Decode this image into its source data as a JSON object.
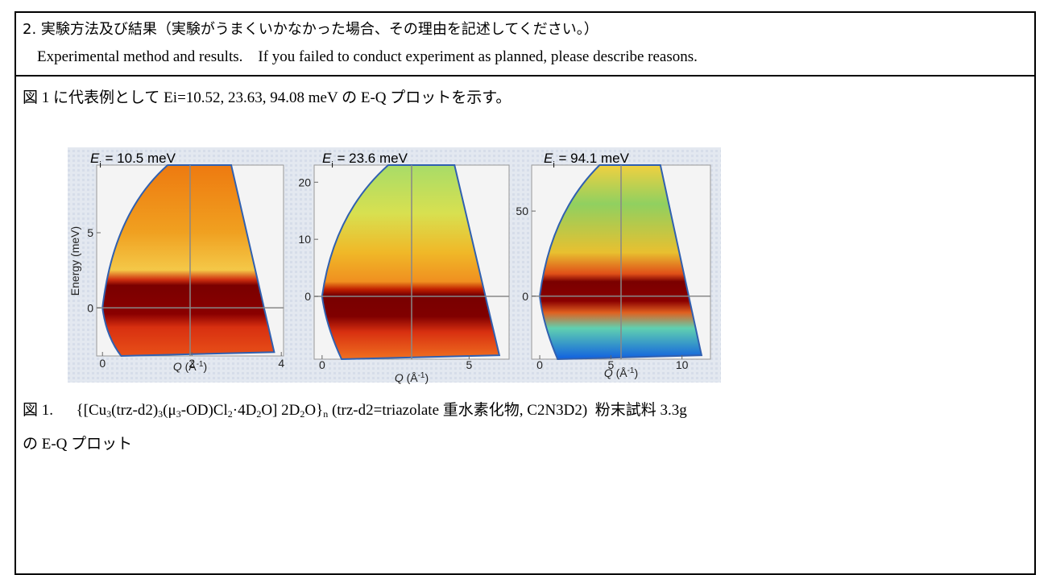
{
  "header": {
    "title": "2. 実験方法及び結果（実験がうまくいかなかった場合、その理由を記述してください。）",
    "subtitle": "Experimental method and results.    If you failed to conduct experiment as planned, please describe reasons."
  },
  "body": {
    "intro": "図 1 に代表例として Ei=10.52, 23.63, 94.08 meV の E-Q プロットを示す。",
    "figure": {
      "panels": [
        {
          "title": [
            {
              "text": "E",
              "style": "italic"
            },
            {
              "text": "i",
              "style": "sub"
            },
            {
              "text": " = 10.5 meV"
            }
          ],
          "ylabel": "Energy (meV)",
          "xlabel": [
            {
              "text": "Q",
              "style": "italic"
            },
            {
              "text": " (Å"
            },
            {
              "text": "-1",
              "style": "sup"
            },
            {
              "text": ")"
            }
          ],
          "xlim": [
            -0.13,
            4.05
          ],
          "ylim": [
            -3.2,
            9.5
          ],
          "xticks": [
            0,
            2,
            4
          ],
          "yticks": [
            0,
            5
          ]
        },
        {
          "title": [
            {
              "text": "E",
              "style": "italic"
            },
            {
              "text": "i",
              "style": "sub"
            },
            {
              "text": " = 23.6 meV"
            }
          ],
          "xlabel": [
            {
              "text": "Q",
              "style": "italic"
            },
            {
              "text": " (Å"
            },
            {
              "text": "-1",
              "style": "sup"
            },
            {
              "text": ")"
            }
          ],
          "xlim": [
            -0.27,
            6.36
          ],
          "ylim": [
            -11,
            23
          ],
          "xticks": [
            0,
            5
          ],
          "yticks": [
            0,
            10,
            20
          ]
        },
        {
          "title": [
            {
              "text": "E",
              "style": "italic"
            },
            {
              "text": "i",
              "style": "sub"
            },
            {
              "text": " = 94.1 meV"
            }
          ],
          "xlabel": [
            {
              "text": "Q",
              "style": "italic"
            },
            {
              "text": " (Å"
            },
            {
              "text": "-1",
              "style": "sup"
            },
            {
              "text": ")"
            }
          ],
          "xlim": [
            -0.57,
            12.0
          ],
          "ylim": [
            -37,
            77
          ],
          "xticks": [
            0,
            5,
            10
          ],
          "yticks": [
            0,
            50
          ]
        }
      ]
    },
    "caption": {
      "label": "図 1.",
      "segments": [
        {
          "text": "{[Cu"
        },
        {
          "text": "3",
          "style": "sub"
        },
        {
          "text": "(trz-d2)"
        },
        {
          "text": "3",
          "style": "sub"
        },
        {
          "text": "(μ"
        },
        {
          "text": "3",
          "style": "sub"
        },
        {
          "text": "-OD)Cl"
        },
        {
          "text": "2",
          "style": "sub"
        },
        {
          "text": "·4D"
        },
        {
          "text": "2",
          "style": "sub"
        },
        {
          "text": "O] 2D"
        },
        {
          "text": "2",
          "style": "sub"
        },
        {
          "text": "O}"
        },
        {
          "text": "n",
          "style": "sub"
        },
        {
          "text": " (trz-d2=triazolate 重水素化物, C2N3D2)  粉末試料 3.3g"
        }
      ],
      "tail": "の E-Q プロット"
    }
  }
}
